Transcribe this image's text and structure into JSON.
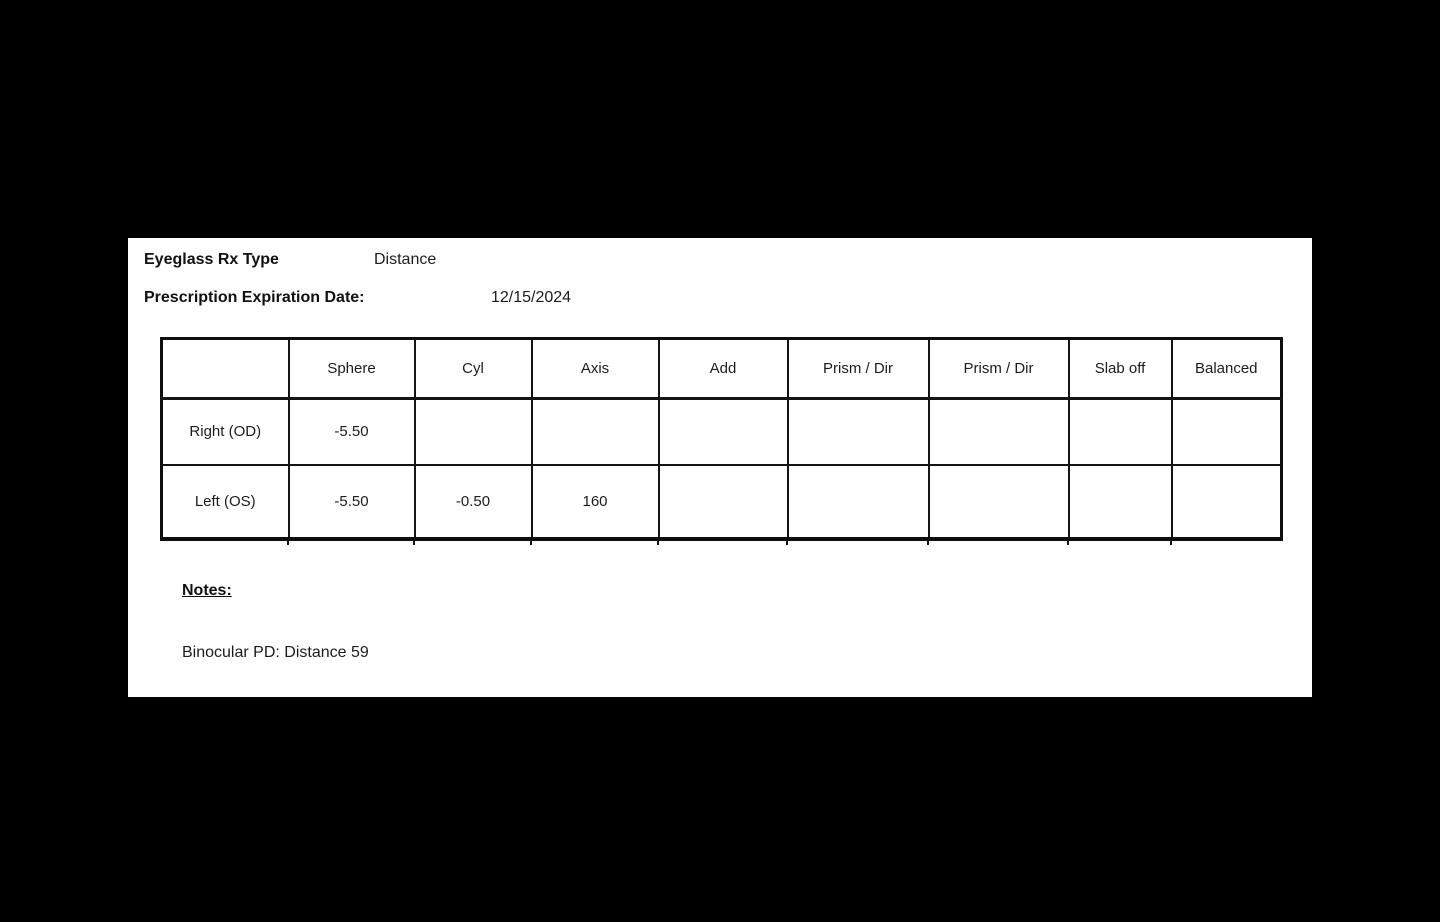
{
  "page": {
    "background_color": "#000000",
    "paper_color": "#ffffff",
    "ink_color": "#161616"
  },
  "header": {
    "rx_type_label": "Eyeglass Rx Type",
    "rx_type_value": "Distance",
    "expiration_label": "Prescription Expiration Date:",
    "expiration_value": "12/15/2024"
  },
  "prescription_table": {
    "columns": [
      "",
      "Sphere",
      "Cyl",
      "Axis",
      "Add",
      "Prism / Dir",
      "Prism / Dir",
      "Slab off",
      "Balanced"
    ],
    "rows": [
      {
        "label": "Right (OD)",
        "values": [
          "-5.50",
          "",
          "",
          "",
          "",
          "",
          "",
          ""
        ]
      },
      {
        "label": "Left (OS)",
        "values": [
          "-5.50",
          "-0.50",
          "160",
          "",
          "",
          "",
          "",
          ""
        ]
      }
    ]
  },
  "notes": {
    "heading": "Notes:",
    "body": "Binocular PD: Distance 59"
  }
}
